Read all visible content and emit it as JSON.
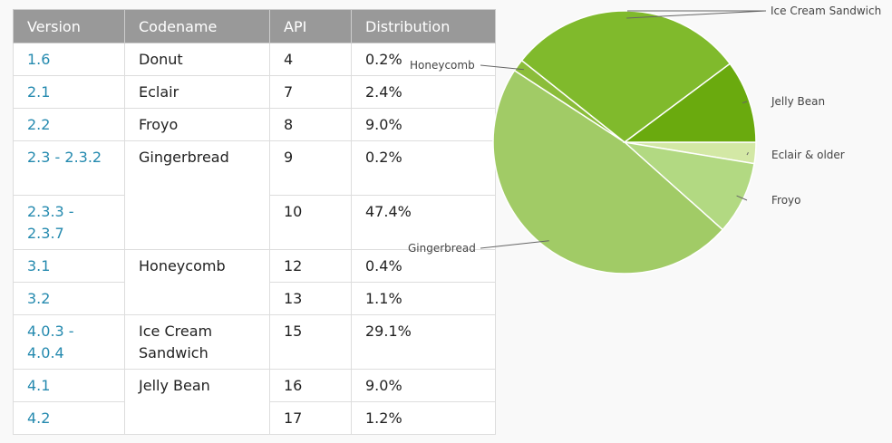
{
  "table": {
    "headers": [
      "Version",
      "Codename",
      "API",
      "Distribution"
    ],
    "rows": [
      {
        "version": "1.6",
        "codename": "Donut",
        "api": "4",
        "dist": "0.2%"
      },
      {
        "version": "2.1",
        "codename": "Eclair",
        "api": "7",
        "dist": "2.4%"
      },
      {
        "version": "2.2",
        "codename": "Froyo",
        "api": "8",
        "dist": "9.0%"
      },
      {
        "version": "2.3 - 2.3.2",
        "codename": "Gingerbread",
        "api": "9",
        "dist": "0.2%"
      },
      {
        "version": "2.3.3 - 2.3.7",
        "codename": "",
        "api": "10",
        "dist": "47.4%"
      },
      {
        "version": "3.1",
        "codename": "Honeycomb",
        "api": "12",
        "dist": "0.4%"
      },
      {
        "version": "3.2",
        "codename": "",
        "api": "13",
        "dist": "1.1%"
      },
      {
        "version": "4.0.3 - 4.0.4",
        "codename": "Ice Cream Sandwich",
        "api": "15",
        "dist": "29.1%"
      },
      {
        "version": "4.1",
        "codename": "Jelly Bean",
        "api": "16",
        "dist": "9.0%"
      },
      {
        "version": "4.2",
        "codename": "",
        "api": "17",
        "dist": "1.2%"
      }
    ]
  },
  "chart_data": {
    "type": "pie",
    "slices": [
      {
        "label": "Eclair & older",
        "value": 2.6,
        "color": "#d3e8a5"
      },
      {
        "label": "Froyo",
        "value": 9.0,
        "color": "#b2d982"
      },
      {
        "label": "Gingerbread",
        "value": 47.6,
        "color": "#a1cb66"
      },
      {
        "label": "Honeycomb",
        "value": 1.5,
        "color": "#8bbd3a"
      },
      {
        "label": "Ice Cream Sandwich",
        "value": 29.1,
        "color": "#80ba2c"
      },
      {
        "label": "Jelly Bean",
        "value": 10.2,
        "color": "#6aaa0e"
      }
    ]
  }
}
